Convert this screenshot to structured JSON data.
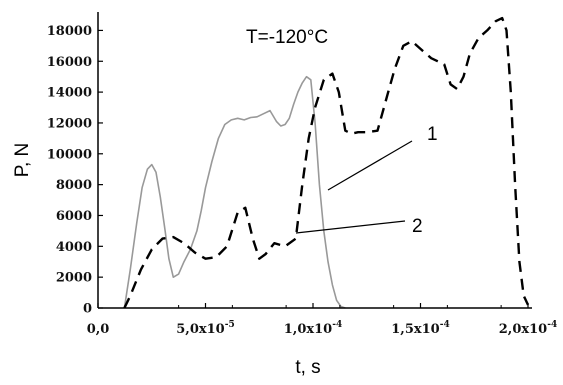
{
  "chart_data": {
    "type": "line",
    "xlabel": "t, s",
    "ylabel": "P, N",
    "xlim": [
      0,
      0.0002
    ],
    "ylim": [
      0,
      19000
    ],
    "x_ticks": [
      {
        "value": 0,
        "label": "0,0"
      },
      {
        "value": 5e-05,
        "label": "5,0x10-5"
      },
      {
        "value": 0.0001,
        "label": "1,0x10-4"
      },
      {
        "value": 0.00015,
        "label": "1,5x10-4"
      },
      {
        "value": 0.0002,
        "label": "2,0x10-4"
      }
    ],
    "y_ticks": [
      0,
      2000,
      4000,
      6000,
      8000,
      10000,
      12000,
      14000,
      16000,
      18000
    ],
    "annotations": [
      {
        "text": "T=-120°C"
      },
      {
        "text": "1",
        "series_index": 0
      },
      {
        "text": "2",
        "series_index": 1
      }
    ],
    "series": [
      {
        "style": "solid",
        "color": "#999999",
        "x": [
          1.23e-05,
          1.5e-05,
          1.8e-05,
          2.05e-05,
          2.3e-05,
          2.5e-05,
          2.7e-05,
          2.9e-05,
          3.1e-05,
          3.3e-05,
          3.5e-05,
          3.75e-05,
          4e-05,
          4.3e-05,
          4.6e-05,
          4.8e-05,
          5e-05,
          5.3e-05,
          5.6e-05,
          5.9e-05,
          6.2e-05,
          6.5e-05,
          6.8e-05,
          7.1e-05,
          7.4e-05,
          7.7e-05,
          8e-05,
          8.3e-05,
          8.5e-05,
          8.7e-05,
          8.9e-05,
          9.1e-05,
          9.3e-05,
          9.5e-05,
          9.7e-05,
          9.9e-05,
          0.000101,
          0.000103,
          0.000105,
          0.000107,
          0.000109,
          0.000111,
          0.000113,
          0.000115
        ],
        "y": [
          0,
          2500,
          5500,
          7800,
          9000,
          9300,
          8800,
          7200,
          5200,
          3200,
          2000,
          2200,
          3000,
          3800,
          5000,
          6300,
          7800,
          9500,
          11000,
          11900,
          12200,
          12300,
          12200,
          12350,
          12400,
          12600,
          12800,
          12100,
          11800,
          11900,
          12300,
          13200,
          14000,
          14600,
          15000,
          14800,
          12000,
          8000,
          5000,
          3000,
          1500,
          500,
          100,
          0
        ]
      },
      {
        "style": "dashed",
        "color": "#000000",
        "x": [
          1.23e-05,
          1.5e-05,
          2e-05,
          2.5e-05,
          3e-05,
          3.5e-05,
          4e-05,
          4.5e-05,
          5e-05,
          5.5e-05,
          6e-05,
          6.5e-05,
          6.85e-05,
          7.2e-05,
          7.5e-05,
          7.8e-05,
          8.2e-05,
          8.7e-05,
          9.2e-05,
          9.5e-05,
          9.8e-05,
          0.000101,
          0.000105,
          0.000109,
          0.000112,
          0.000115,
          0.000118,
          0.000121,
          0.000125,
          0.00013,
          0.000135,
          0.000138,
          0.000142,
          0.000146,
          0.00015,
          0.000155,
          0.000161,
          0.000164,
          0.000167,
          0.00017,
          0.000173,
          0.000177,
          0.000181,
          0.000185,
          0.000188,
          0.00019,
          0.000192,
          0.000194,
          0.000196,
          0.000198,
          0.0002
        ],
        "y": [
          0,
          800,
          2500,
          3800,
          4500,
          4600,
          4200,
          3600,
          3200,
          3300,
          4000,
          6200,
          6500,
          4500,
          3200,
          3500,
          4200,
          4000,
          4500,
          8000,
          11000,
          13000,
          14800,
          15200,
          14000,
          11500,
          11300,
          11400,
          11400,
          11500,
          14000,
          15500,
          17000,
          17300,
          16800,
          16200,
          15800,
          14500,
          14200,
          15000,
          16500,
          17500,
          18000,
          18600,
          18800,
          18000,
          14000,
          8000,
          3000,
          800,
          200
        ]
      }
    ]
  }
}
